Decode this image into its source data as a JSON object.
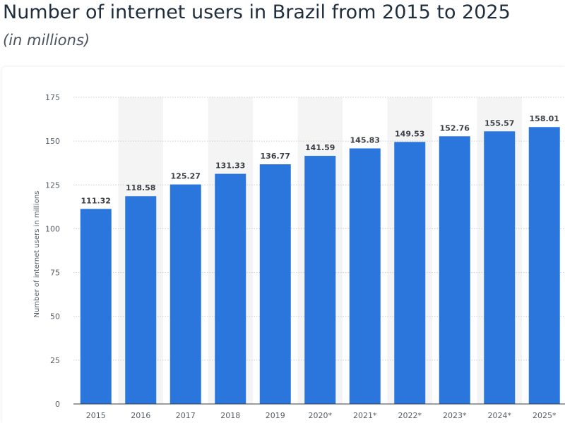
{
  "header": {
    "title": "Number of internet users in Brazil from 2015 to 2025",
    "subtitle": "(in millions)"
  },
  "chart_data": {
    "type": "bar",
    "categories": [
      "2015",
      "2016",
      "2017",
      "2018",
      "2019",
      "2020*",
      "2021*",
      "2022*",
      "2023*",
      "2024*",
      "2025*"
    ],
    "series": [
      {
        "values": [
          111.32,
          118.58,
          125.27,
          131.33,
          136.77,
          141.59,
          145.83,
          149.53,
          152.76,
          155.57,
          158.01
        ],
        "labels": [
          "111.32",
          "118.58",
          "125.27",
          "131.33",
          "136.77",
          "141.59",
          "145.83",
          "149.53",
          "152.76",
          "155.57",
          "158.01"
        ]
      }
    ],
    "ylabel": "Number of internet users in millions",
    "xlabel": "",
    "ylim": [
      0,
      175
    ],
    "yticks": [
      0,
      25,
      50,
      75,
      100,
      125,
      150,
      175
    ],
    "ytick_labels": [
      "0",
      "25",
      "50",
      "75",
      "100",
      "125",
      "150",
      "175"
    ],
    "grid": true,
    "alternating_column_shading": true,
    "colors": {
      "bar": "#2a76dd",
      "shade": "#f4f4f5",
      "grid": "#c9ced3",
      "axis": "#3a3f45"
    }
  }
}
